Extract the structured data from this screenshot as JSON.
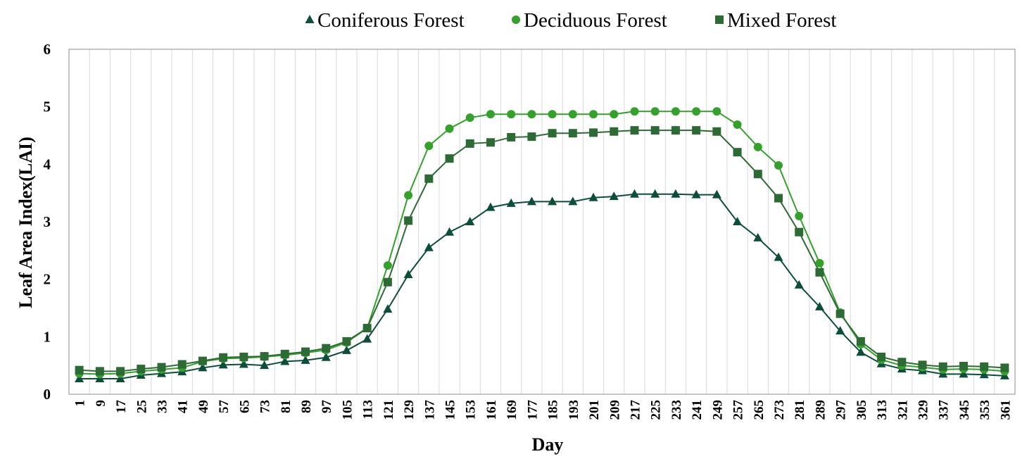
{
  "chart_data": {
    "type": "line",
    "title": "",
    "xlabel": "Day",
    "ylabel": "Leaf Area Index(LAI)",
    "ylim": [
      0,
      6
    ],
    "yticks": [
      0,
      1,
      2,
      3,
      4,
      5,
      6
    ],
    "grid": "vertical",
    "legend_position": "top",
    "x": [
      1,
      9,
      17,
      25,
      33,
      41,
      49,
      57,
      65,
      73,
      81,
      89,
      97,
      105,
      113,
      121,
      129,
      137,
      145,
      153,
      161,
      169,
      177,
      185,
      193,
      201,
      209,
      217,
      225,
      233,
      241,
      249,
      257,
      265,
      273,
      281,
      289,
      297,
      305,
      313,
      321,
      329,
      337,
      345,
      353,
      361
    ],
    "series": [
      {
        "name": "Coniferous Forest",
        "marker": "triangle",
        "color": "#0d4d3a",
        "values": [
          0.27,
          0.27,
          0.27,
          0.33,
          0.36,
          0.39,
          0.46,
          0.51,
          0.52,
          0.5,
          0.57,
          0.59,
          0.64,
          0.76,
          0.96,
          1.48,
          2.08,
          2.55,
          2.82,
          3.0,
          3.25,
          3.32,
          3.35,
          3.35,
          3.35,
          3.42,
          3.44,
          3.48,
          3.48,
          3.48,
          3.47,
          3.47,
          3.0,
          2.72,
          2.38,
          1.9,
          1.52,
          1.1,
          0.73,
          0.53,
          0.44,
          0.41,
          0.35,
          0.35,
          0.34,
          0.32
        ]
      },
      {
        "name": "Deciduous Forest",
        "marker": "circle",
        "color": "#35a02c",
        "values": [
          0.36,
          0.35,
          0.36,
          0.4,
          0.43,
          0.46,
          0.57,
          0.62,
          0.63,
          0.65,
          0.68,
          0.72,
          0.77,
          0.9,
          1.15,
          2.24,
          3.46,
          4.32,
          4.62,
          4.81,
          4.87,
          4.87,
          4.87,
          4.87,
          4.87,
          4.87,
          4.87,
          4.92,
          4.92,
          4.92,
          4.92,
          4.92,
          4.69,
          4.3,
          3.98,
          3.1,
          2.28,
          1.42,
          0.87,
          0.6,
          0.5,
          0.47,
          0.43,
          0.44,
          0.43,
          0.4
        ]
      },
      {
        "name": "Mixed Forest",
        "marker": "square",
        "color": "#2d6a35",
        "values": [
          0.42,
          0.4,
          0.4,
          0.44,
          0.47,
          0.52,
          0.58,
          0.64,
          0.65,
          0.66,
          0.7,
          0.74,
          0.8,
          0.92,
          1.15,
          1.95,
          3.02,
          3.75,
          4.1,
          4.36,
          4.38,
          4.47,
          4.48,
          4.54,
          4.54,
          4.55,
          4.57,
          4.59,
          4.59,
          4.59,
          4.59,
          4.57,
          4.21,
          3.83,
          3.41,
          2.82,
          2.12,
          1.4,
          0.92,
          0.65,
          0.56,
          0.51,
          0.48,
          0.49,
          0.48,
          0.46
        ]
      }
    ]
  }
}
